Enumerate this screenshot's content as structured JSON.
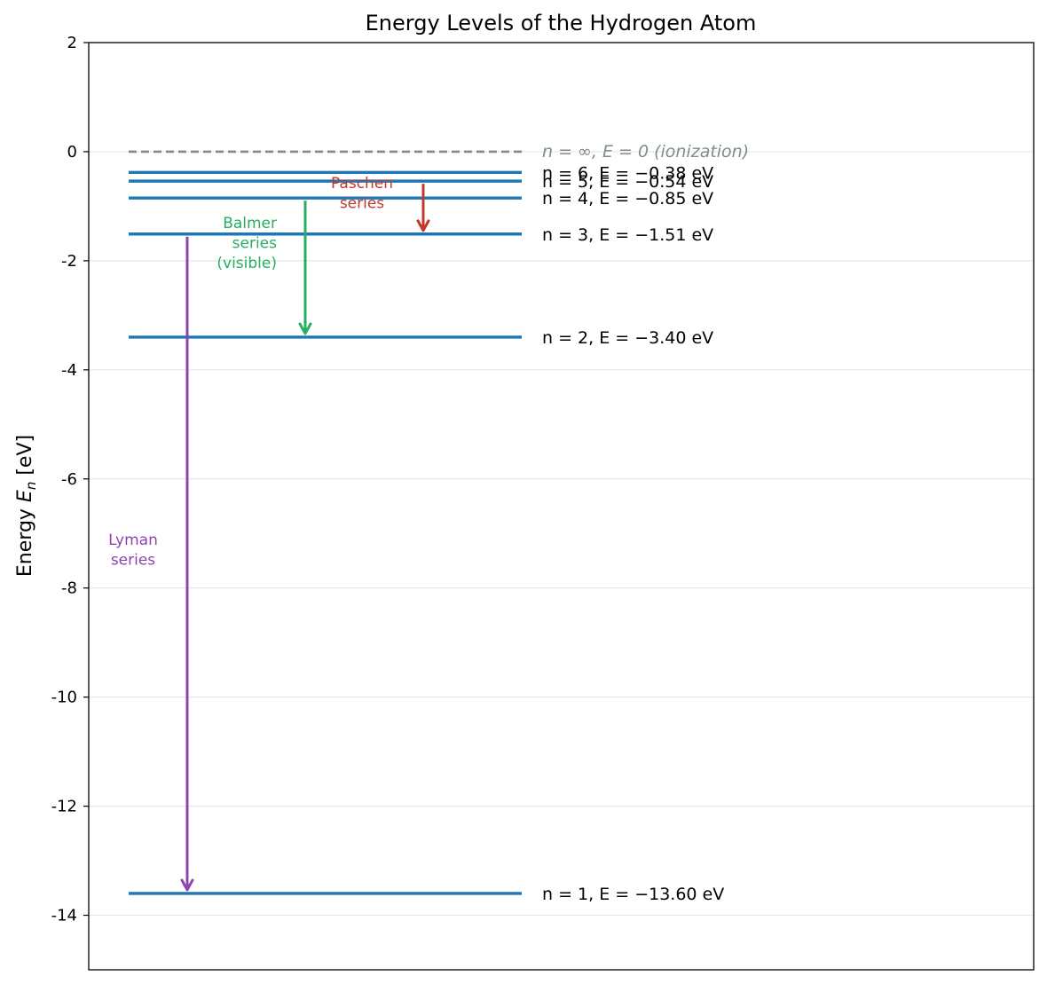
{
  "chart_data": {
    "type": "line",
    "title": "Energy Levels of the Hydrogen Atom",
    "ylabel": "Energy E_n [eV]",
    "ylabel_main": "Energy ",
    "ylabel_var": "E",
    "ylabel_sub": "n",
    "ylabel_unit": " [eV]",
    "ylim": [
      -15,
      2
    ],
    "yticks": [
      2,
      0,
      -2,
      -4,
      -6,
      -8,
      -10,
      -12,
      -14
    ],
    "ytick_labels": [
      "2",
      "0",
      "-2",
      "-4",
      "-6",
      "-8",
      "-10",
      "-12",
      "-14"
    ],
    "grid": true,
    "colors": {
      "level": "#1f77b4",
      "ionization": "#7f8c8d",
      "lyman": "#8e44ad",
      "balmer": "#27ae60",
      "paschen": "#c0392b",
      "grid": "#e6e6e6"
    },
    "levels": [
      {
        "n": "1",
        "energy": -13.6,
        "label": "n = 1,  E = −13.60 eV"
      },
      {
        "n": "2",
        "energy": -3.4,
        "label": "n = 2,  E = −3.40 eV"
      },
      {
        "n": "3",
        "energy": -1.51,
        "label": "n = 3,  E = −1.51 eV"
      },
      {
        "n": "4",
        "energy": -0.85,
        "label": "n = 4,  E = −0.85 eV"
      },
      {
        "n": "5",
        "energy": -0.54,
        "label": "n = 5,  E = −0.54 eV"
      },
      {
        "n": "6",
        "energy": -0.38,
        "label": "n = 6,  E = −0.38 eV"
      }
    ],
    "ionization": {
      "energy": 0,
      "label": "n = ∞,  E = 0  (ionization)"
    },
    "transitions": [
      {
        "series": "lyman",
        "from": -1.51,
        "to": -13.6,
        "label": [
          "Lyman",
          "series"
        ]
      },
      {
        "series": "balmer",
        "from": -0.85,
        "to": -3.4,
        "label": [
          "Balmer",
          "series",
          "(visible)"
        ]
      },
      {
        "series": "paschen",
        "from": -0.54,
        "to": -1.51,
        "label": [
          "Paschen",
          "series"
        ]
      }
    ]
  }
}
